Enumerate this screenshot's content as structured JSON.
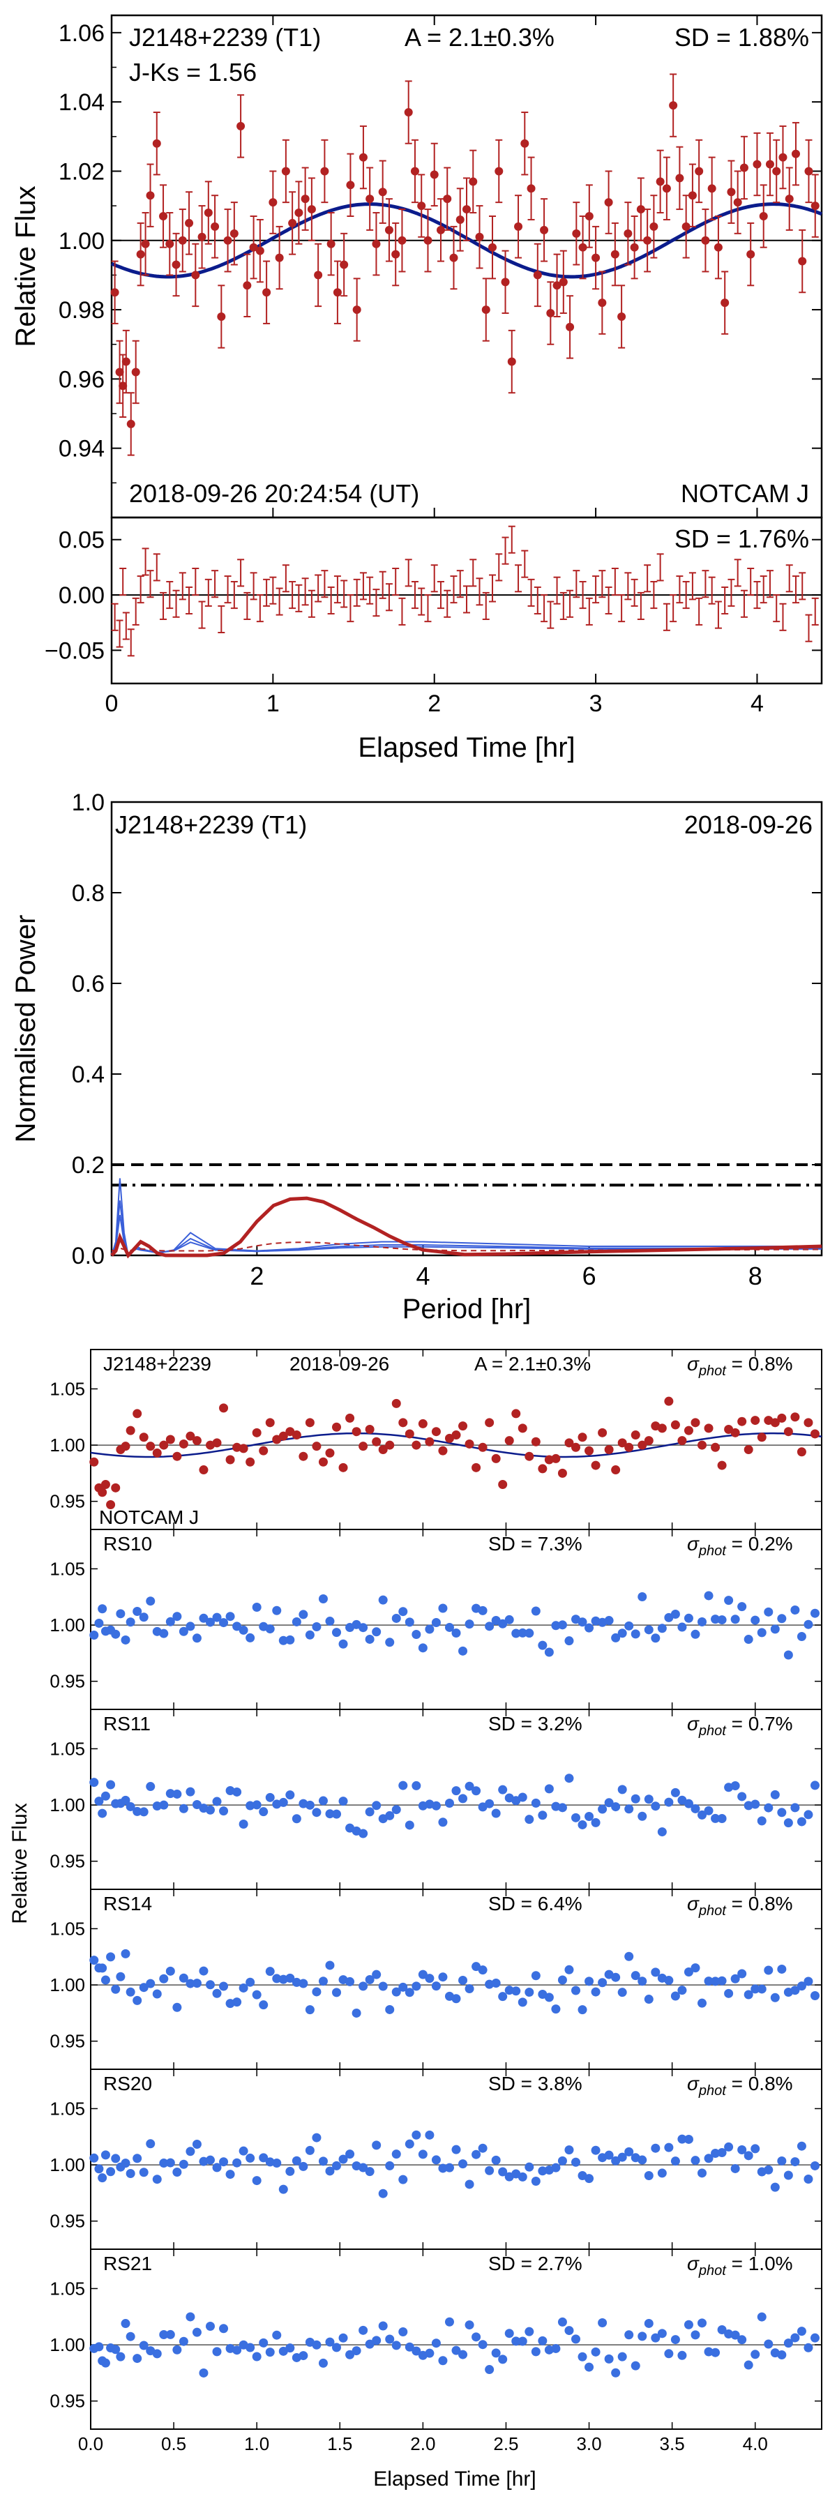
{
  "chart_data": [
    {
      "id": "lightcurve",
      "type": "scatter",
      "target": "J2148+2239 (T1)",
      "amplitude": "A = 2.1±0.3%",
      "sd_text": "SD = 1.88%",
      "color_index": "J-Ks = 1.56",
      "datetime": "2018-09-26 20:24:54 (UT)",
      "instrument": "NOTCAM J",
      "ylabel": "Relative Flux",
      "xlim": [
        0,
        4.4
      ],
      "ylim": [
        0.92,
        1.065
      ],
      "yticks": [
        0.94,
        0.96,
        0.98,
        1.0,
        1.02,
        1.04,
        1.06
      ],
      "ytick_labels": [
        "0.94",
        "0.96",
        "0.98",
        "1.00",
        "1.02",
        "1.04",
        "1.06"
      ],
      "reference_line": 1.0,
      "model": {
        "type": "sinusoid",
        "mean": 1.0,
        "amplitude": 0.0105,
        "period_hr": 2.5,
        "peak_time_hr": 1.6
      },
      "series": [
        {
          "name": "NOTCAM J photometry",
          "color": "#b22222",
          "errorbar": 0.009,
          "x": [
            0.02,
            0.05,
            0.07,
            0.09,
            0.12,
            0.15,
            0.18,
            0.21,
            0.24,
            0.28,
            0.32,
            0.36,
            0.4,
            0.44,
            0.48,
            0.52,
            0.56,
            0.6,
            0.64,
            0.68,
            0.72,
            0.76,
            0.8,
            0.84,
            0.88,
            0.92,
            0.96,
            1.0,
            1.04,
            1.08,
            1.12,
            1.16,
            1.2,
            1.24,
            1.28,
            1.32,
            1.36,
            1.4,
            1.44,
            1.48,
            1.52,
            1.56,
            1.6,
            1.64,
            1.68,
            1.72,
            1.76,
            1.8,
            1.84,
            1.88,
            1.92,
            1.96,
            2.0,
            2.04,
            2.08,
            2.12,
            2.16,
            2.2,
            2.24,
            2.28,
            2.32,
            2.36,
            2.4,
            2.44,
            2.48,
            2.52,
            2.56,
            2.6,
            2.64,
            2.68,
            2.72,
            2.76,
            2.8,
            2.84,
            2.88,
            2.92,
            2.96,
            3.0,
            3.04,
            3.08,
            3.12,
            3.16,
            3.2,
            3.24,
            3.28,
            3.32,
            3.36,
            3.4,
            3.44,
            3.48,
            3.52,
            3.56,
            3.6,
            3.64,
            3.68,
            3.72,
            3.76,
            3.8,
            3.84,
            3.88,
            3.92,
            3.96,
            4.0,
            4.04,
            4.08,
            4.12,
            4.16,
            4.2,
            4.24,
            4.28,
            4.32,
            4.36
          ],
          "y": [
            0.985,
            0.962,
            0.958,
            0.965,
            0.947,
            0.962,
            0.996,
            0.999,
            1.013,
            1.028,
            1.007,
            0.999,
            0.993,
            1.0,
            1.005,
            0.99,
            1.001,
            1.008,
            1.004,
            0.978,
            1.0,
            1.002,
            1.033,
            0.987,
            0.998,
            0.997,
            0.985,
            1.011,
            0.995,
            1.02,
            1.005,
            1.008,
            1.012,
            1.009,
            0.99,
            1.02,
            0.999,
            0.985,
            0.993,
            1.016,
            0.98,
            1.024,
            1.012,
            0.999,
            1.014,
            1.003,
            0.996,
            1.0,
            1.037,
            1.02,
            1.01,
            1.0,
            1.019,
            1.003,
            1.012,
            0.995,
            1.006,
            1.009,
            1.017,
            1.001,
            0.98,
            0.998,
            1.02,
            0.988,
            0.965,
            1.004,
            1.028,
            1.015,
            0.99,
            1.003,
            0.979,
            0.987,
            0.988,
            0.975,
            1.002,
            0.998,
            1.007,
            0.995,
            0.982,
            1.011,
            0.996,
            0.978,
            1.002,
            0.998,
            1.009,
            1.0,
            1.004,
            1.017,
            1.015,
            1.039,
            1.018,
            1.004,
            1.013,
            1.02,
            1.0,
            1.015,
            0.998,
            0.982,
            1.014,
            1.011,
            1.021,
            0.996,
            1.022,
            1.007,
            1.022,
            1.02,
            1.024,
            1.012,
            1.025,
            0.994,
            1.02,
            1.01
          ]
        }
      ]
    },
    {
      "id": "residuals",
      "type": "scatter",
      "sd_text": "SD = 1.76%",
      "xlabel": "Elapsed Time [hr]",
      "xlim": [
        0,
        4.4
      ],
      "xticks": [
        0,
        1,
        2,
        3,
        4
      ],
      "xtick_labels": [
        "0",
        "1",
        "2",
        "3",
        "4"
      ],
      "ylim": [
        -0.08,
        0.07
      ],
      "yticks": [
        -0.05,
        0.0,
        0.05
      ],
      "ytick_labels": [
        "−0.05",
        "0.00",
        "0.05"
      ],
      "reference_line": 0.0,
      "errorbar": 0.012,
      "series": [
        {
          "name": "residuals",
          "color": "#b22222",
          "y": [
            -0.02,
            -0.035,
            0.012,
            -0.028,
            -0.043,
            -0.015,
            0.005,
            0.03,
            0.01,
            0.025,
            -0.01,
            0.0,
            -0.008,
            0.008,
            -0.005,
            0.012,
            -0.018,
            0.002,
            0.01,
            -0.022,
            0.005,
            0.0,
            0.02,
            -0.01,
            0.008,
            -0.012,
            0.002,
            0.004,
            -0.006,
            0.015,
            0.0,
            -0.003,
            0.003,
            -0.008,
            0.006,
            0.01,
            -0.005,
            0.005,
            0.001,
            -0.012,
            0.002,
            0.008,
            0.004,
            -0.007,
            0.009,
            -0.002,
            0.012,
            -0.015,
            0.02,
            0.0,
            -0.006,
            -0.012,
            0.015,
            0.0,
            -0.008,
            0.005,
            0.01,
            -0.004,
            0.02,
            0.003,
            -0.01,
            0.006,
            0.025,
            0.04,
            0.05,
            0.015,
            0.028,
            0.002,
            -0.005,
            -0.012,
            -0.018,
            0.004,
            -0.01,
            -0.008,
            0.01,
            0.0,
            -0.015,
            0.005,
            0.01,
            -0.005,
            0.012,
            -0.012,
            0.008,
            0.002,
            -0.01,
            0.015,
            0.0,
            0.025,
            -0.02,
            -0.012,
            0.005,
            0.0,
            0.008,
            -0.015,
            0.01,
            0.004,
            -0.018,
            -0.005,
            0.002,
            0.02,
            -0.008,
            0.012,
            0.0,
            0.005,
            0.01,
            -0.012,
            -0.02,
            0.015,
            0.005,
            0.008,
            -0.03,
            -0.015
          ]
        }
      ]
    },
    {
      "id": "periodogram",
      "type": "line",
      "target": "J2148+2239 (T1)",
      "date": "2018-09-26",
      "xlabel": "Period [hr]",
      "ylabel": "Normalised Power",
      "xlim": [
        0.25,
        8.8
      ],
      "ylim": [
        0,
        1.0
      ],
      "xticks": [
        2,
        4,
        6,
        8
      ],
      "xtick_labels": [
        "2",
        "4",
        "6",
        "8"
      ],
      "yticks": [
        0.0,
        0.2,
        0.4,
        0.6,
        0.8,
        1.0
      ],
      "ytick_labels": [
        "0.0",
        "0.2",
        "0.4",
        "0.6",
        "0.8",
        "1.0"
      ],
      "thresholds": [
        {
          "name": "dashed",
          "value": 0.2
        },
        {
          "name": "dash-dot",
          "value": 0.155
        }
      ],
      "series": [
        {
          "name": "target",
          "color": "#b22222",
          "x": [
            0.25,
            0.3,
            0.35,
            0.4,
            0.45,
            0.5,
            0.55,
            0.6,
            0.7,
            0.8,
            0.9,
            1.0,
            1.2,
            1.4,
            1.6,
            1.8,
            2.0,
            2.2,
            2.4,
            2.6,
            2.8,
            3.0,
            3.2,
            3.4,
            3.6,
            3.8,
            4.0,
            4.5,
            5,
            6,
            7,
            8,
            8.8
          ],
          "y": [
            0.0,
            0.01,
            0.04,
            0.02,
            0.0,
            0.01,
            0.02,
            0.03,
            0.02,
            0.005,
            0.0,
            0.0,
            0.0,
            0.0,
            0.005,
            0.03,
            0.075,
            0.11,
            0.124,
            0.126,
            0.118,
            0.1,
            0.08,
            0.062,
            0.042,
            0.025,
            0.012,
            0.002,
            0.003,
            0.008,
            0.012,
            0.016,
            0.02
          ]
        },
        {
          "name": "reference stars",
          "color": "#3a5fd9",
          "x": [
            0.25,
            0.3,
            0.35,
            0.4,
            0.45,
            0.5,
            0.55,
            0.6,
            0.7,
            0.8,
            1.0,
            1.2,
            1.5,
            2.0,
            2.5,
            3.0,
            3.5,
            4.0,
            5,
            6,
            7,
            8,
            8.8
          ],
          "y": [
            0.0,
            0.03,
            0.17,
            0.05,
            0.0,
            0.01,
            0.02,
            0.015,
            0.01,
            0.005,
            0.012,
            0.05,
            0.015,
            0.01,
            0.015,
            0.025,
            0.03,
            0.03,
            0.025,
            0.02,
            0.02,
            0.02,
            0.02
          ]
        }
      ]
    },
    {
      "id": "comparison-grid",
      "type": "scatter",
      "ylabel": "Relative Flux",
      "xlabel": "Elapsed Time [hr]",
      "xlim": [
        0,
        4.4
      ],
      "xticks": [
        0.0,
        0.5,
        1.0,
        1.5,
        2.0,
        2.5,
        3.0,
        3.5,
        4.0
      ],
      "xtick_labels": [
        "0.0",
        "0.5",
        "1.0",
        "1.5",
        "2.0",
        "2.5",
        "3.0",
        "3.5",
        "4.0"
      ],
      "ylim": [
        0.925,
        1.085
      ],
      "yticks": [
        0.95,
        1.0,
        1.05
      ],
      "ytick_labels": [
        "0.95",
        "1.00",
        "1.05"
      ],
      "sigma_label": "σ",
      "sigma_sub": "phot",
      "panels": [
        {
          "name": "J2148+2239",
          "date": "2018-09-26",
          "amp": "A = 2.1±0.3%",
          "sigma": "= 0.8%",
          "footer": "NOTCAM J",
          "color": "#b22222",
          "model": true,
          "seed": 3
        },
        {
          "name": "RS10",
          "sd": "SD = 7.3%",
          "sigma": "= 0.2%",
          "color": "#3a6fe0",
          "model": false,
          "seed": 11
        },
        {
          "name": "RS11",
          "sd": "SD = 3.2%",
          "sigma": "= 0.7%",
          "color": "#3a6fe0",
          "model": false,
          "seed": 23
        },
        {
          "name": "RS14",
          "sd": "SD = 6.4%",
          "sigma": "= 0.8%",
          "color": "#3a6fe0",
          "model": false,
          "seed": 37
        },
        {
          "name": "RS20",
          "sd": "SD = 3.8%",
          "sigma": "= 0.8%",
          "color": "#3a6fe0",
          "model": false,
          "seed": 41
        },
        {
          "name": "RS21",
          "sd": "SD = 2.7%",
          "sigma": "= 1.0%",
          "color": "#3a6fe0",
          "model": false,
          "seed": 53
        }
      ]
    }
  ]
}
